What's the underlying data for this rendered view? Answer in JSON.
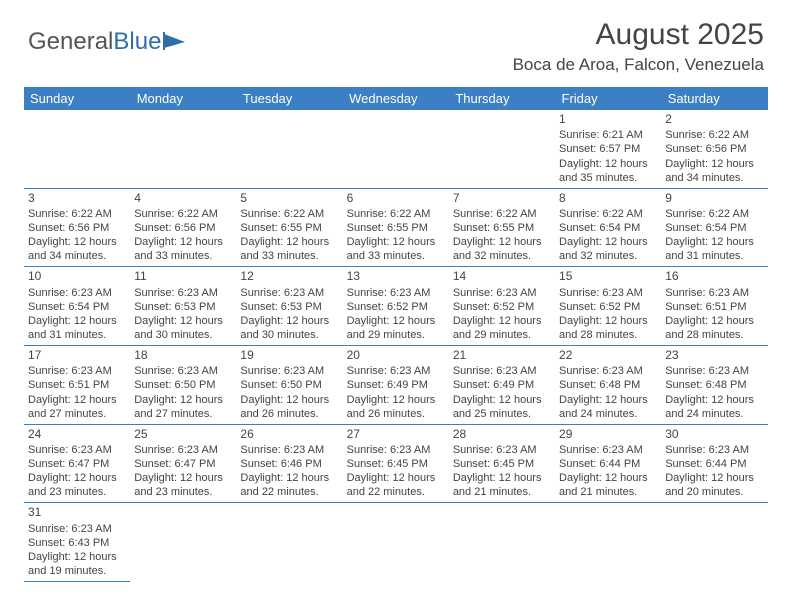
{
  "logo": {
    "part1": "General",
    "part2": "Blue"
  },
  "title": "August 2025",
  "location": "Boca de Aroa, Falcon, Venezuela",
  "colors": {
    "header_bg": "#3b7fc4",
    "header_text": "#ffffff",
    "border": "#3b7fc4",
    "body_text": "#444444",
    "logo_gray": "#555555",
    "logo_blue": "#2f6fa8",
    "background": "#ffffff"
  },
  "day_headers": [
    "Sunday",
    "Monday",
    "Tuesday",
    "Wednesday",
    "Thursday",
    "Friday",
    "Saturday"
  ],
  "weeks": [
    [
      null,
      null,
      null,
      null,
      null,
      {
        "n": "1",
        "sr": "6:21 AM",
        "ss": "6:57 PM",
        "dh": "12",
        "dm": "35"
      },
      {
        "n": "2",
        "sr": "6:22 AM",
        "ss": "6:56 PM",
        "dh": "12",
        "dm": "34"
      }
    ],
    [
      {
        "n": "3",
        "sr": "6:22 AM",
        "ss": "6:56 PM",
        "dh": "12",
        "dm": "34"
      },
      {
        "n": "4",
        "sr": "6:22 AM",
        "ss": "6:56 PM",
        "dh": "12",
        "dm": "33"
      },
      {
        "n": "5",
        "sr": "6:22 AM",
        "ss": "6:55 PM",
        "dh": "12",
        "dm": "33"
      },
      {
        "n": "6",
        "sr": "6:22 AM",
        "ss": "6:55 PM",
        "dh": "12",
        "dm": "33"
      },
      {
        "n": "7",
        "sr": "6:22 AM",
        "ss": "6:55 PM",
        "dh": "12",
        "dm": "32"
      },
      {
        "n": "8",
        "sr": "6:22 AM",
        "ss": "6:54 PM",
        "dh": "12",
        "dm": "32"
      },
      {
        "n": "9",
        "sr": "6:22 AM",
        "ss": "6:54 PM",
        "dh": "12",
        "dm": "31"
      }
    ],
    [
      {
        "n": "10",
        "sr": "6:23 AM",
        "ss": "6:54 PM",
        "dh": "12",
        "dm": "31"
      },
      {
        "n": "11",
        "sr": "6:23 AM",
        "ss": "6:53 PM",
        "dh": "12",
        "dm": "30"
      },
      {
        "n": "12",
        "sr": "6:23 AM",
        "ss": "6:53 PM",
        "dh": "12",
        "dm": "30"
      },
      {
        "n": "13",
        "sr": "6:23 AM",
        "ss": "6:52 PM",
        "dh": "12",
        "dm": "29"
      },
      {
        "n": "14",
        "sr": "6:23 AM",
        "ss": "6:52 PM",
        "dh": "12",
        "dm": "29"
      },
      {
        "n": "15",
        "sr": "6:23 AM",
        "ss": "6:52 PM",
        "dh": "12",
        "dm": "28"
      },
      {
        "n": "16",
        "sr": "6:23 AM",
        "ss": "6:51 PM",
        "dh": "12",
        "dm": "28"
      }
    ],
    [
      {
        "n": "17",
        "sr": "6:23 AM",
        "ss": "6:51 PM",
        "dh": "12",
        "dm": "27"
      },
      {
        "n": "18",
        "sr": "6:23 AM",
        "ss": "6:50 PM",
        "dh": "12",
        "dm": "27"
      },
      {
        "n": "19",
        "sr": "6:23 AM",
        "ss": "6:50 PM",
        "dh": "12",
        "dm": "26"
      },
      {
        "n": "20",
        "sr": "6:23 AM",
        "ss": "6:49 PM",
        "dh": "12",
        "dm": "26"
      },
      {
        "n": "21",
        "sr": "6:23 AM",
        "ss": "6:49 PM",
        "dh": "12",
        "dm": "25"
      },
      {
        "n": "22",
        "sr": "6:23 AM",
        "ss": "6:48 PM",
        "dh": "12",
        "dm": "24"
      },
      {
        "n": "23",
        "sr": "6:23 AM",
        "ss": "6:48 PM",
        "dh": "12",
        "dm": "24"
      }
    ],
    [
      {
        "n": "24",
        "sr": "6:23 AM",
        "ss": "6:47 PM",
        "dh": "12",
        "dm": "23"
      },
      {
        "n": "25",
        "sr": "6:23 AM",
        "ss": "6:47 PM",
        "dh": "12",
        "dm": "23"
      },
      {
        "n": "26",
        "sr": "6:23 AM",
        "ss": "6:46 PM",
        "dh": "12",
        "dm": "22"
      },
      {
        "n": "27",
        "sr": "6:23 AM",
        "ss": "6:45 PM",
        "dh": "12",
        "dm": "22"
      },
      {
        "n": "28",
        "sr": "6:23 AM",
        "ss": "6:45 PM",
        "dh": "12",
        "dm": "21"
      },
      {
        "n": "29",
        "sr": "6:23 AM",
        "ss": "6:44 PM",
        "dh": "12",
        "dm": "21"
      },
      {
        "n": "30",
        "sr": "6:23 AM",
        "ss": "6:44 PM",
        "dh": "12",
        "dm": "20"
      }
    ],
    [
      {
        "n": "31",
        "sr": "6:23 AM",
        "ss": "6:43 PM",
        "dh": "12",
        "dm": "19"
      },
      null,
      null,
      null,
      null,
      null,
      null
    ]
  ],
  "labels": {
    "sunrise": "Sunrise:",
    "sunset": "Sunset:",
    "daylight": "Daylight:",
    "hours_and": "hours and",
    "minutes": "minutes."
  }
}
